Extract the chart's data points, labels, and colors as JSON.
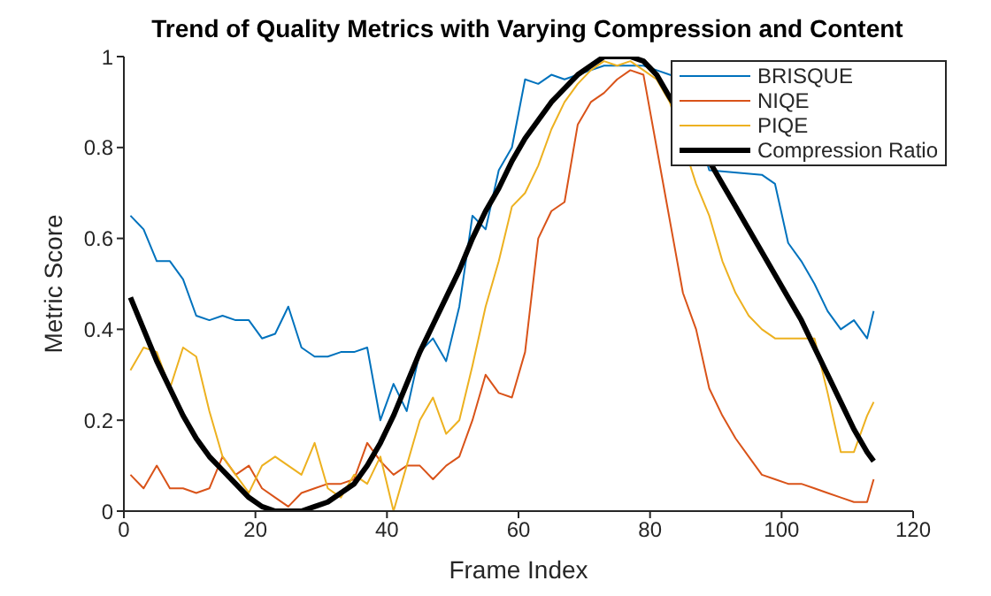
{
  "chart_data": {
    "type": "line",
    "title": "Trend of Quality Metrics with Varying Compression and Content",
    "xlabel": "Frame Index",
    "ylabel": "Metric Score",
    "x": [
      1,
      3,
      5,
      7,
      9,
      11,
      13,
      15,
      17,
      19,
      21,
      23,
      25,
      27,
      29,
      31,
      33,
      35,
      37,
      39,
      41,
      43,
      45,
      47,
      49,
      51,
      53,
      55,
      57,
      59,
      61,
      63,
      65,
      67,
      69,
      71,
      73,
      75,
      77,
      79,
      81,
      83,
      85,
      87,
      89,
      91,
      93,
      95,
      97,
      99,
      101,
      103,
      105,
      107,
      109,
      111,
      113,
      114
    ],
    "series": [
      {
        "name": "BRISQUE",
        "color": "#0072bd",
        "values": [
          0.65,
          0.62,
          0.55,
          0.55,
          0.51,
          0.43,
          0.42,
          0.43,
          0.42,
          0.42,
          0.38,
          0.39,
          0.45,
          0.36,
          0.34,
          0.34,
          0.35,
          0.35,
          0.36,
          0.2,
          0.28,
          0.22,
          0.35,
          0.38,
          0.33,
          0.45,
          0.65,
          0.62,
          0.75,
          0.8,
          0.95,
          0.94,
          0.96,
          0.95,
          0.96,
          0.97,
          0.98,
          0.98,
          0.98,
          0.98,
          0.97,
          0.96,
          0.95,
          null,
          0.75,
          null,
          null,
          null,
          0.74,
          0.72,
          0.59,
          0.55,
          0.5,
          0.44,
          0.4,
          0.42,
          0.38,
          0.44
        ]
      },
      {
        "name": "NIQE",
        "color": "#d95319",
        "values": [
          0.08,
          0.05,
          0.1,
          0.05,
          0.05,
          0.04,
          0.05,
          0.12,
          0.08,
          0.1,
          0.05,
          0.03,
          0.01,
          0.04,
          0.05,
          0.06,
          0.06,
          0.07,
          0.15,
          0.11,
          0.08,
          0.1,
          0.1,
          0.07,
          0.1,
          0.12,
          0.2,
          0.3,
          0.26,
          0.25,
          0.35,
          0.6,
          0.66,
          0.68,
          0.85,
          0.9,
          0.92,
          0.95,
          0.97,
          0.96,
          0.8,
          0.64,
          0.48,
          0.4,
          0.27,
          0.21,
          0.16,
          0.12,
          0.08,
          0.07,
          0.06,
          0.06,
          0.05,
          0.04,
          0.03,
          0.02,
          0.02,
          0.07
        ]
      },
      {
        "name": "PIQE",
        "color": "#edb120",
        "values": [
          0.31,
          0.36,
          0.35,
          0.27,
          0.36,
          0.34,
          0.22,
          0.12,
          0.08,
          0.04,
          0.1,
          0.12,
          0.1,
          0.08,
          0.15,
          0.05,
          0.03,
          0.08,
          0.06,
          0.12,
          0.0,
          0.1,
          0.2,
          0.25,
          0.17,
          0.2,
          0.32,
          0.45,
          0.55,
          0.67,
          0.7,
          0.76,
          0.84,
          0.9,
          0.94,
          0.97,
          0.99,
          0.98,
          0.99,
          0.97,
          0.95,
          0.9,
          null,
          0.72,
          0.65,
          0.55,
          0.48,
          0.43,
          0.4,
          0.38,
          0.38,
          0.38,
          0.38,
          0.26,
          0.13,
          0.13,
          0.21,
          0.24
        ]
      },
      {
        "name": "Compression Ratio",
        "color": "#000000",
        "values": [
          0.47,
          0.4,
          0.33,
          0.27,
          0.21,
          0.16,
          0.12,
          0.09,
          0.06,
          0.03,
          0.01,
          0.0,
          0.0,
          0.0,
          0.01,
          0.02,
          0.04,
          0.06,
          0.1,
          0.15,
          0.21,
          0.28,
          0.35,
          0.41,
          0.47,
          0.53,
          0.6,
          0.66,
          0.71,
          0.77,
          0.82,
          0.86,
          0.9,
          0.93,
          0.96,
          0.98,
          1.0,
          1.0,
          1.0,
          0.99,
          0.96,
          0.91,
          null,
          null,
          0.77,
          0.72,
          0.67,
          0.62,
          0.57,
          0.52,
          0.47,
          0.42,
          0.36,
          0.3,
          0.24,
          0.18,
          0.13,
          0.11
        ]
      }
    ],
    "xlim": [
      0,
      120
    ],
    "xticks": [
      0,
      20,
      40,
      60,
      80,
      100,
      120
    ],
    "ylim": [
      0,
      1
    ],
    "yticks": [
      0,
      0.2,
      0.4,
      0.6,
      0.8,
      1
    ],
    "legend": "top right",
    "grid": false
  }
}
